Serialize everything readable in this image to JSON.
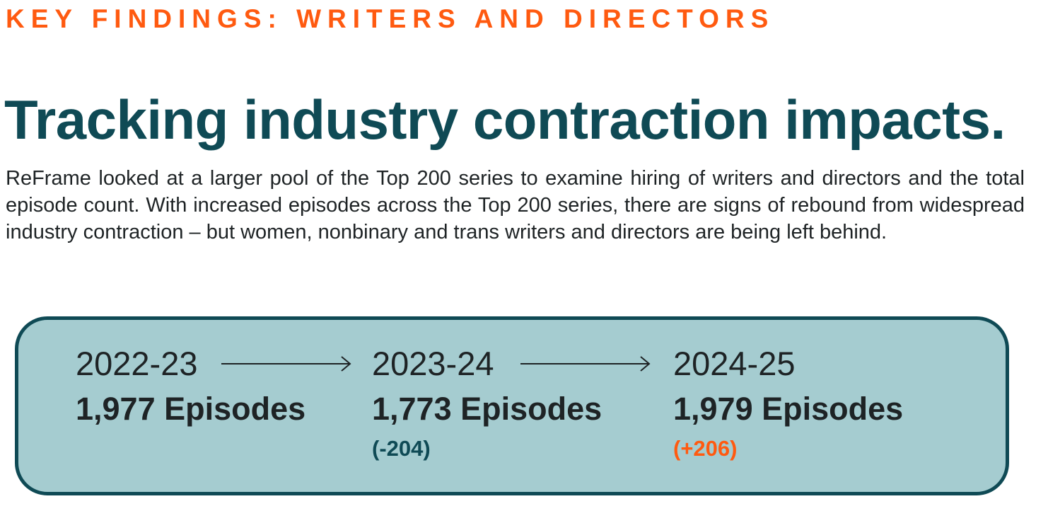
{
  "header": {
    "kicker": "KEY FINDINGS: WRITERS AND DIRECTORS",
    "headline": "Tracking industry contraction impacts.",
    "body": "ReFrame looked at a larger pool of the Top 200 series to examine hiring of writers and directors and the total episode count. With increased episodes across the Top 200 series, there are signs of rebound from widespread industry contraction – but women, nonbinary and trans writers and directors are being left behind."
  },
  "timeline": [
    {
      "year": "2022-23",
      "episodes_label": "1,977 Episodes",
      "episodes": 1977,
      "change_label": "",
      "change": null
    },
    {
      "year": "2023-24",
      "episodes_label": "1,773 Episodes",
      "episodes": 1773,
      "change_label": "(-204)",
      "change": -204
    },
    {
      "year": "2024-25",
      "episodes_label": "1,979 Episodes",
      "episodes": 1979,
      "change_label": "(+206)",
      "change": 206
    }
  ],
  "colors": {
    "accent": "#ff5a10",
    "teal": "#0f4a55",
    "panel": "#a5ccd0",
    "negative": "#0f4a55",
    "positive": "#ff5a10"
  },
  "icons": {
    "arrow": "right-arrow-icon"
  }
}
